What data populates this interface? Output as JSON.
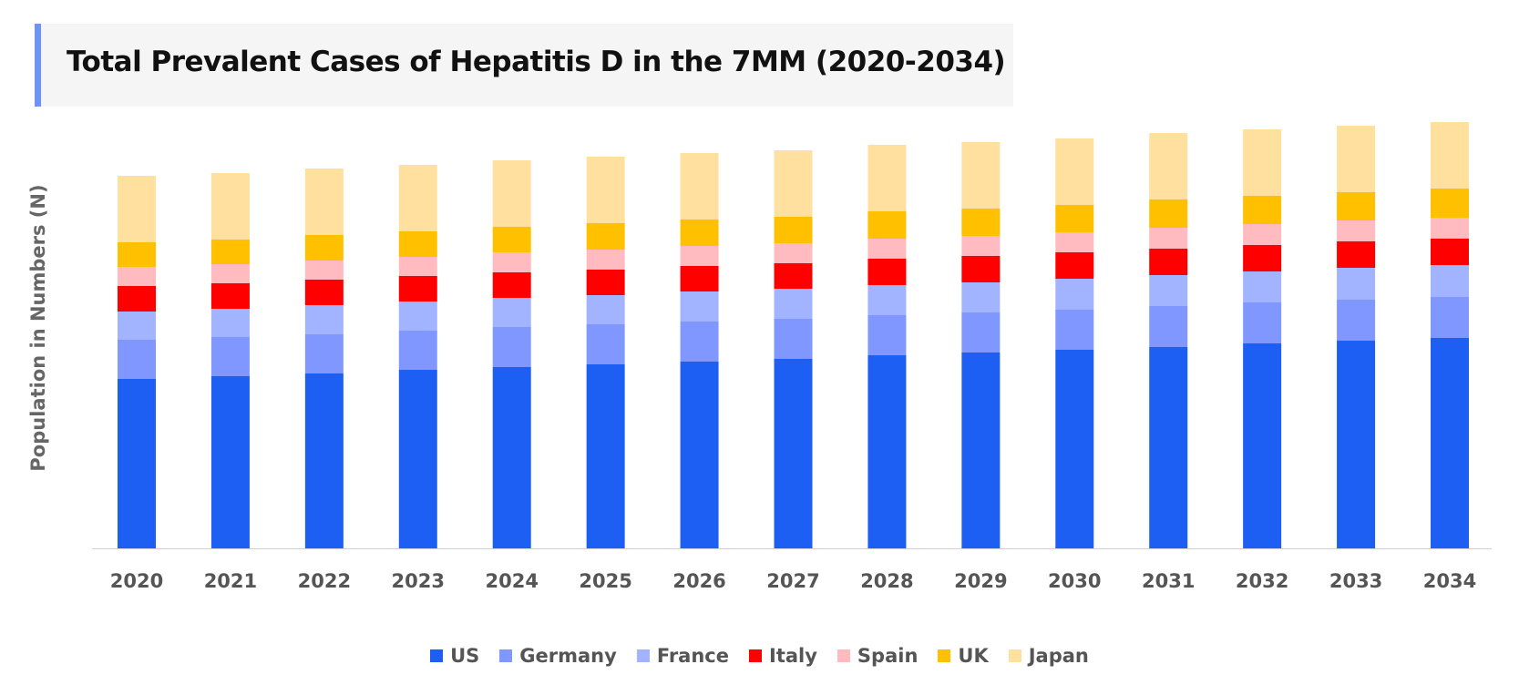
{
  "chart_data": {
    "type": "bar",
    "stacked": true,
    "title": "Total Prevalent Cases of Hepatitis D in the 7MM (2020-2034)",
    "xlabel": "",
    "ylabel": "Population in Numbers (N)",
    "y_axis_ticks_shown": false,
    "grid": false,
    "legend_position": "bottom",
    "ylim": [
      0,
      480
    ],
    "categories": [
      "2020",
      "2021",
      "2022",
      "2023",
      "2024",
      "2025",
      "2026",
      "2027",
      "2028",
      "2029",
      "2030",
      "2031",
      "2032",
      "2033",
      "2034"
    ],
    "series": [
      {
        "name": "US",
        "color": "#1c5ff2",
        "values": [
          186,
          189,
          192,
          196,
          199,
          202,
          205,
          208,
          212,
          215,
          218,
          221,
          225,
          228,
          231
        ]
      },
      {
        "name": "Germany",
        "color": "#7f97ff",
        "values": [
          43,
          43,
          43,
          43,
          44,
          44,
          44,
          44,
          44,
          44,
          44,
          45,
          45,
          45,
          45
        ]
      },
      {
        "name": "France",
        "color": "#a2b3ff",
        "values": [
          31,
          31,
          32,
          32,
          32,
          32,
          33,
          33,
          33,
          33,
          34,
          34,
          34,
          35,
          35
        ]
      },
      {
        "name": "Italy",
        "color": "#ff0000",
        "values": [
          28,
          28,
          28,
          28,
          28,
          28,
          28,
          28,
          29,
          29,
          29,
          29,
          29,
          29,
          29
        ]
      },
      {
        "name": "Spain",
        "color": "#ffbbbf",
        "values": [
          21,
          21,
          21,
          21,
          22,
          22,
          22,
          22,
          22,
          22,
          22,
          23,
          23,
          23,
          23
        ]
      },
      {
        "name": "UK",
        "color": "#ffc000",
        "values": [
          27,
          27,
          28,
          28,
          28,
          29,
          29,
          29,
          30,
          30,
          30,
          31,
          31,
          31,
          32
        ]
      },
      {
        "name": "Japan",
        "color": "#ffe09f",
        "values": [
          73,
          73,
          73,
          73,
          73,
          73,
          73,
          73,
          73,
          73,
          73,
          73,
          73,
          73,
          73
        ]
      }
    ]
  }
}
